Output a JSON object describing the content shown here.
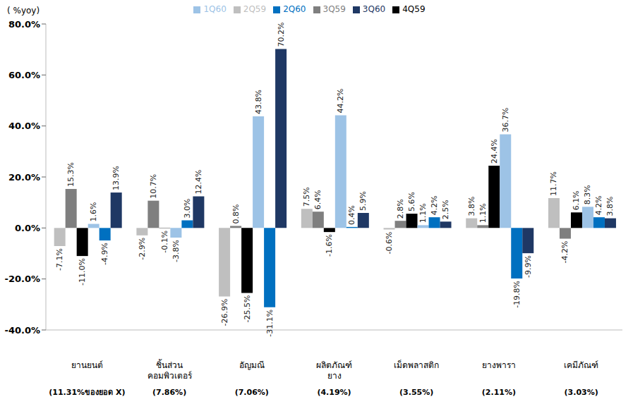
{
  "chart_data": {
    "type": "bar",
    "y_label": "( %yoy)",
    "categories": [
      "ยานยนต์",
      "ชิ้นส่วน คอมพิวเตอร์",
      "อัญมณี",
      "ผลิตภัณฑ์ ยาง",
      "เม็ดพลาสติก",
      "ยางพารา",
      "เคมีภัณฑ์"
    ],
    "category_shares": [
      "(11.31%ของยอด X)",
      "(7.86%)",
      "(7.06%)",
      "(4.19%)",
      "(3.55%)",
      "(2.11%)",
      "(3.03%)"
    ],
    "series": [
      {
        "name": "2Q59",
        "color": "#bfbfbf",
        "values": [
          -7.1,
          -2.9,
          -26.9,
          7.5,
          -0.6,
          3.8,
          11.7
        ],
        "value_labels": [
          "-7.1%",
          "-2.9%",
          "-26.9%",
          "7.5%",
          "-0.6%",
          "3.8%",
          "11.7%"
        ]
      },
      {
        "name": "3Q59",
        "color": "#7f7f7f",
        "values": [
          15.3,
          10.7,
          0.8,
          6.4,
          2.8,
          1.1,
          -4.2
        ],
        "value_labels": [
          "15.3%",
          "10.7%",
          "0.8%",
          "6.4%",
          "2.8%",
          "1.1%",
          "-4.2%"
        ]
      },
      {
        "name": "4Q59",
        "color": "#000000",
        "values": [
          -11.0,
          -0.1,
          -25.5,
          -1.6,
          5.6,
          24.4,
          6.1
        ],
        "value_labels": [
          "-11.0%",
          "-0.1%",
          "-25.5%",
          "-1.6%",
          "5.6%",
          "24.4%",
          "6.1%"
        ]
      },
      {
        "name": "1Q60",
        "color": "#9dc3e6",
        "values": [
          1.6,
          -3.8,
          43.8,
          44.2,
          1.1,
          36.7,
          8.3
        ],
        "value_labels": [
          "1.6%",
          "-3.8%",
          "43.8%",
          "44.2%",
          "1.1%",
          "36.7%",
          "8.3%"
        ]
      },
      {
        "name": "2Q60",
        "color": "#0070c0",
        "values": [
          -4.9,
          3.0,
          -31.1,
          0.4,
          4.2,
          -19.8,
          4.2
        ],
        "value_labels": [
          "-4.9%",
          "3.0%",
          "-31.1%",
          "0.4%",
          "4.2%",
          "-19.8%",
          "4.2%"
        ]
      },
      {
        "name": "3Q60",
        "color": "#1f3864",
        "values": [
          13.9,
          12.4,
          70.2,
          5.9,
          2.5,
          -9.9,
          3.8
        ],
        "value_labels": [
          "13.9%",
          "12.4%",
          "70.2%",
          "5.9%",
          "2.5%",
          "-9.9%",
          "3.8%"
        ]
      }
    ],
    "ylim": [
      -40,
      80
    ],
    "yticks": [
      {
        "value": -40,
        "label": "-40.0%"
      },
      {
        "value": -20,
        "label": "-20.0%"
      },
      {
        "value": 0,
        "label": "0.0%"
      },
      {
        "value": 20,
        "label": "20.0%"
      },
      {
        "value": 40,
        "label": "40.0%"
      },
      {
        "value": 60,
        "label": "60.0%"
      },
      {
        "value": 80,
        "label": "80.0%"
      }
    ],
    "grid": false,
    "legend": "top",
    "data_labels": true
  }
}
